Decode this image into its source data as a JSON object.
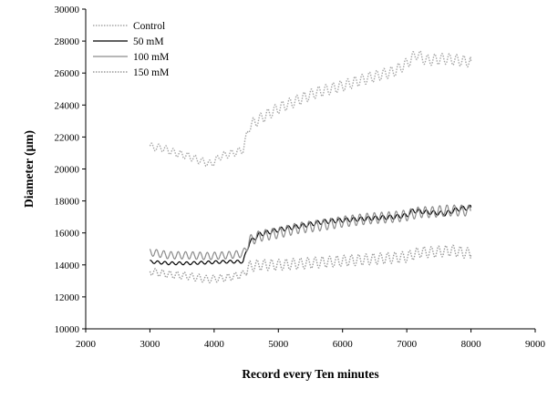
{
  "chart_data": {
    "type": "line",
    "title": "",
    "xlabel": "Record every Ten minutes",
    "ylabel": "Diameter (μm)",
    "xlim": [
      2000,
      9000
    ],
    "ylim": [
      10000,
      30000
    ],
    "xticks": [
      2000,
      3000,
      4000,
      5000,
      6000,
      7000,
      8000,
      9000
    ],
    "yticks": [
      10000,
      12000,
      14000,
      16000,
      18000,
      20000,
      22000,
      24000,
      26000,
      28000,
      30000
    ],
    "grid": false,
    "legend_position": "top-left",
    "series": [
      {
        "name": "Control",
        "color": "#a6a6a6",
        "style": "dotted",
        "x": [
          3000,
          3200,
          3400,
          3600,
          3800,
          3950,
          4100,
          4300,
          4450,
          4550,
          4700,
          5000,
          5300,
          5600,
          6000,
          6400,
          6800,
          7000,
          7150,
          7300,
          7600,
          7800,
          8000
        ],
        "y": [
          21400,
          21300,
          21000,
          20800,
          20500,
          20300,
          20800,
          21000,
          21200,
          22700,
          23100,
          23800,
          24300,
          24800,
          25200,
          25700,
          26100,
          26600,
          27200,
          26800,
          26900,
          26800,
          26700
        ]
      },
      {
        "name": "50 mM",
        "color": "#000000",
        "style": "solid",
        "x": [
          3000,
          3300,
          3600,
          3900,
          4200,
          4450,
          4550,
          4700,
          5000,
          5300,
          5700,
          6000,
          6400,
          6800,
          7000,
          7100,
          7300,
          7600,
          7800,
          8000
        ],
        "y": [
          14200,
          14100,
          14100,
          14150,
          14200,
          14200,
          15400,
          15900,
          16200,
          16400,
          16700,
          16800,
          16900,
          17000,
          17100,
          17400,
          17300,
          17200,
          17500,
          17600
        ]
      },
      {
        "name": "100 mM",
        "color": "#8c8c8c",
        "style": "solid",
        "x": [
          3000,
          3300,
          3600,
          3900,
          4200,
          4450,
          4550,
          4700,
          5000,
          5300,
          5700,
          6000,
          6400,
          6800,
          7000,
          7200,
          7400,
          7600,
          7800,
          8000
        ],
        "y": [
          14800,
          14600,
          14600,
          14550,
          14600,
          14700,
          15500,
          15800,
          16000,
          16300,
          16500,
          16700,
          16900,
          17000,
          17100,
          17300,
          17300,
          17400,
          17400,
          17400
        ]
      },
      {
        "name": "150 mM",
        "color": "#9a9a9a",
        "style": "dotted",
        "x": [
          3000,
          3300,
          3600,
          3900,
          4200,
          4450,
          4550,
          4700,
          5000,
          5400,
          5800,
          6200,
          6600,
          7000,
          7200,
          7400,
          7700,
          8000
        ],
        "y": [
          13600,
          13400,
          13300,
          13100,
          13200,
          13400,
          13900,
          14000,
          14000,
          14100,
          14200,
          14300,
          14400,
          14500,
          14800,
          14800,
          14900,
          14700
        ]
      }
    ]
  }
}
